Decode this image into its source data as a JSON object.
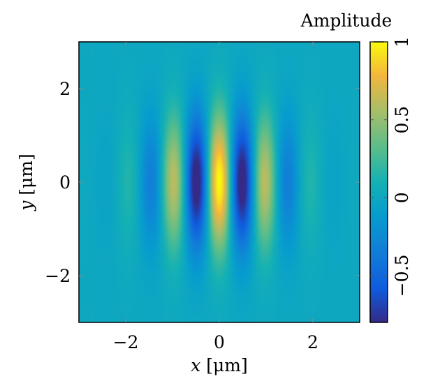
{
  "chart_data": {
    "type": "heatmap",
    "function": "amplitude = exp(-(x^2/2 + y^2/2)) * cos(2*pi*x)",
    "xlim": [
      -3,
      3
    ],
    "ylim": [
      -3,
      3
    ],
    "x_ticks": [
      -2,
      0,
      2
    ],
    "y_ticks": [
      -2,
      0,
      2
    ],
    "x_tick_labels": [
      "−2",
      "0",
      "2"
    ],
    "y_tick_labels": [
      "−2",
      "0",
      "2"
    ],
    "xlabel": {
      "var": "x",
      "unit": " [μm]"
    },
    "ylabel": {
      "var": "y",
      "unit": " [μm]"
    },
    "colorbar": {
      "title": "Amplitude",
      "range": [
        -0.8,
        1
      ],
      "ticks": [
        -0.5,
        0,
        0.5,
        1
      ],
      "tick_labels": [
        "−0.5",
        "0",
        "0.5",
        "1"
      ],
      "colormap": "parula"
    },
    "grid": false,
    "samples": [
      {
        "x": 0,
        "y": 0,
        "value": 1.0
      },
      {
        "x": -0.5,
        "y": 0,
        "value": -0.88
      },
      {
        "x": 0.5,
        "y": 0,
        "value": -0.88
      },
      {
        "x": -1.0,
        "y": 0,
        "value": 0.61
      },
      {
        "x": 1.0,
        "y": 0,
        "value": 0.61
      },
      {
        "x": -1.5,
        "y": 0,
        "value": -0.32
      },
      {
        "x": 1.5,
        "y": 0,
        "value": -0.32
      },
      {
        "x": -2.0,
        "y": 0,
        "value": 0.14
      },
      {
        "x": 2.0,
        "y": 0,
        "value": 0.14
      }
    ]
  }
}
